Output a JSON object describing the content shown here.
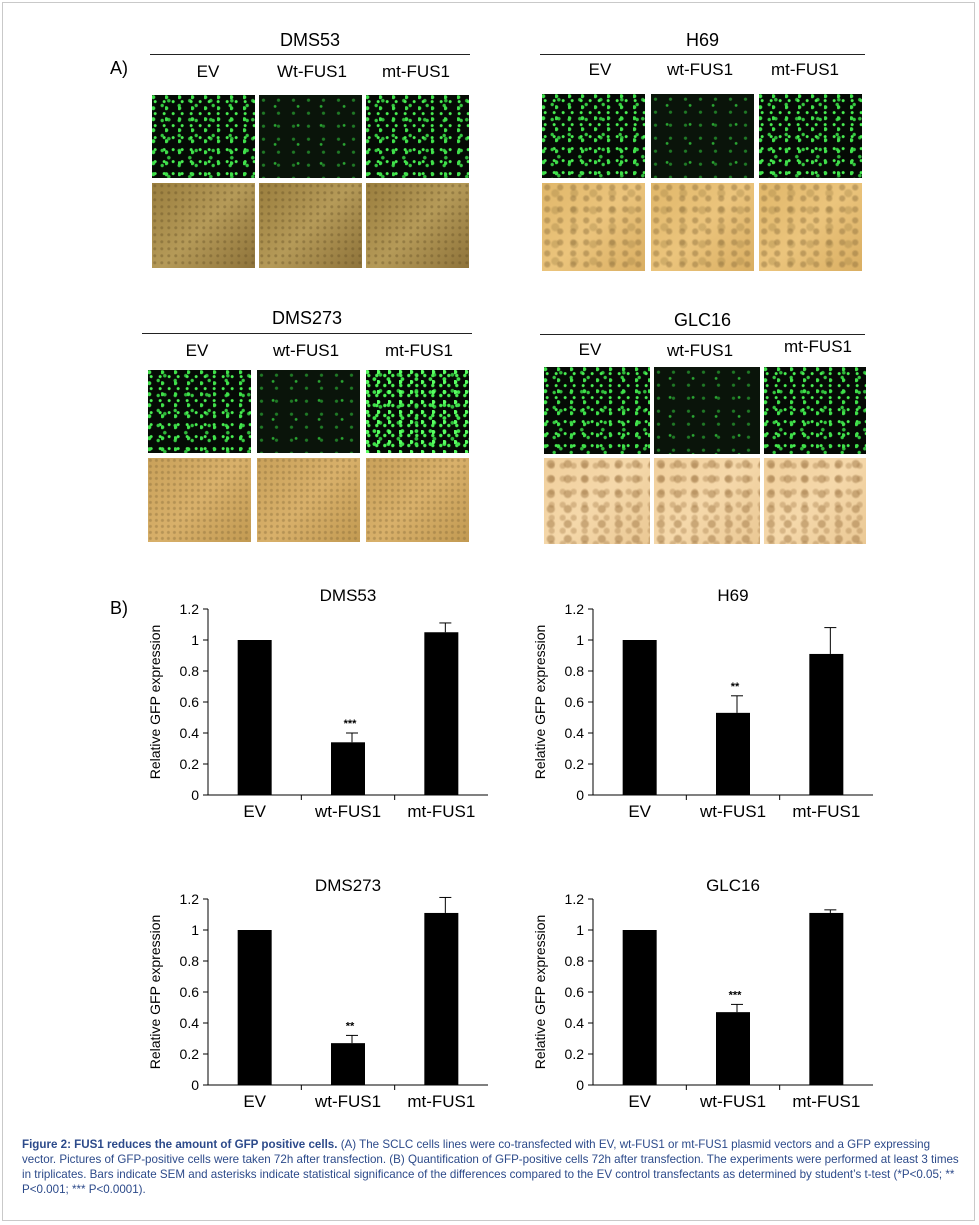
{
  "panelA": {
    "label": "A)",
    "groups": [
      {
        "key": "dms53",
        "title": "DMS53",
        "columns": [
          "EV",
          "Wt-FUS1",
          "mt-FUS1"
        ]
      },
      {
        "key": "h69",
        "title": "H69",
        "columns": [
          "EV",
          "wt-FUS1",
          "mt-FUS1"
        ]
      },
      {
        "key": "dms273",
        "title": "DMS273",
        "columns": [
          "EV",
          "wt-FUS1",
          "mt-FUS1"
        ]
      },
      {
        "key": "glc16",
        "title": "GLC16",
        "columns": [
          "EV",
          "wt-FUS1",
          "mt-FUS1"
        ]
      }
    ]
  },
  "panelB": {
    "label": "B)"
  },
  "chart_data": [
    {
      "type": "bar",
      "title": "DMS53",
      "categories": [
        "EV",
        "wt-FUS1",
        "mt-FUS1"
      ],
      "values": [
        1.0,
        0.34,
        1.05
      ],
      "errors": [
        0.0,
        0.06,
        0.06
      ],
      "annotations": [
        "",
        "***",
        ""
      ],
      "ylabel": "Relative GFP expression",
      "ylim": [
        0,
        1.2
      ],
      "yticks": [
        "0",
        "0.2",
        "0.4",
        "0.6",
        "0.8",
        "1",
        "1.2"
      ]
    },
    {
      "type": "bar",
      "title": "H69",
      "categories": [
        "EV",
        "wt-FUS1",
        "mt-FUS1"
      ],
      "values": [
        1.0,
        0.53,
        0.91
      ],
      "errors": [
        0.0,
        0.11,
        0.17
      ],
      "annotations": [
        "",
        "**",
        ""
      ],
      "ylabel": "Relative GFP expression",
      "ylim": [
        0,
        1.2
      ],
      "yticks": [
        "0",
        "0.2",
        "0.4",
        "0.6",
        "0.8",
        "1",
        "1.2"
      ]
    },
    {
      "type": "bar",
      "title": "DMS273",
      "categories": [
        "EV",
        "wt-FUS1",
        "mt-FUS1"
      ],
      "values": [
        1.0,
        0.27,
        1.11
      ],
      "errors": [
        0.0,
        0.05,
        0.1
      ],
      "annotations": [
        "",
        "**",
        ""
      ],
      "ylabel": "Relative GFP expression",
      "ylim": [
        0,
        1.2
      ],
      "yticks": [
        "0",
        "0.2",
        "0.4",
        "0.6",
        "0.8",
        "1",
        "1.2"
      ]
    },
    {
      "type": "bar",
      "title": "GLC16",
      "categories": [
        "EV",
        "wt-FUS1",
        "mt-FUS1"
      ],
      "values": [
        1.0,
        0.47,
        1.11
      ],
      "errors": [
        0.0,
        0.05,
        0.02
      ],
      "annotations": [
        "",
        "***",
        ""
      ],
      "ylabel": "Relative GFP expression",
      "ylim": [
        0,
        1.2
      ],
      "yticks": [
        "0",
        "0.2",
        "0.4",
        "0.6",
        "0.8",
        "1",
        "1.2"
      ]
    }
  ],
  "caption": {
    "bold": "Figure 2: FUS1 reduces the amount of GFP positive cells.",
    "text": " (A) The SCLC cells lines were co-transfected with EV, wt-FUS1 or mt-FUS1 plasmid vectors and a GFP expressing vector. Pictures of GFP-positive cells were taken 72h after transfection. (B) Quantification of GFP-positive cells 72h after transfection.  The experiments were performed at least 3 times in triplicates. Bars indicate SEM and asterisks indicate statistical significance of the differences compared to the EV control transfectants as determined by student’s t-test (*P<0.05; ** P<0.001; *** P<0.0001)."
  }
}
